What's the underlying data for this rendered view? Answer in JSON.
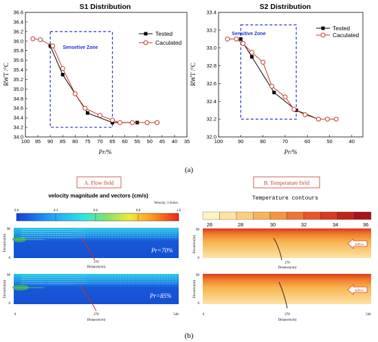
{
  "chart_data": [
    {
      "type": "line",
      "title": "S1 Distribution",
      "xlabel": "Pr/%",
      "ylabel": "RWT /°C",
      "xlim": [
        100,
        35
      ],
      "ylim": [
        34.0,
        36.6
      ],
      "xticks": [
        "100",
        "95",
        "90",
        "85",
        "80",
        "75",
        "70",
        "65",
        "60",
        "55",
        "50",
        "45",
        "40",
        "35"
      ],
      "yticks": [
        "34.0",
        "34.2",
        "34.4",
        "34.6",
        "34.8",
        "35.0",
        "35.2",
        "35.4",
        "35.6",
        "35.8",
        "36.0",
        "36.2",
        "36.4",
        "36.6"
      ],
      "annotation": "Sensetive Zone",
      "zone": {
        "x": [
          90,
          65
        ],
        "y": [
          34.2,
          36.2
        ]
      },
      "legend": "top-right",
      "series": [
        {
          "name": "Tested",
          "x": [
            90,
            85,
            80,
            75,
            65,
            55
          ],
          "y": [
            35.9,
            35.3,
            34.9,
            34.5,
            34.3,
            34.3
          ]
        },
        {
          "name": "Caculated",
          "x": [
            97,
            94,
            89,
            85,
            80,
            76,
            70,
            65,
            62,
            57,
            51,
            47
          ],
          "y": [
            36.05,
            36.03,
            35.9,
            35.43,
            34.9,
            34.6,
            34.45,
            34.35,
            34.3,
            34.3,
            34.3,
            34.3
          ]
        }
      ]
    },
    {
      "type": "line",
      "title": "S2 Distribution",
      "xlabel": "Pr/%",
      "ylabel": "RWT /°C",
      "xlim": [
        100,
        35
      ],
      "ylim": [
        32.0,
        33.4
      ],
      "xticks": [
        "100",
        "90",
        "80",
        "70",
        "60",
        "50",
        "40"
      ],
      "yticks": [
        "32.0",
        "32.2",
        "32.4",
        "32.6",
        "32.8",
        "33.0",
        "33.2",
        "33.4"
      ],
      "annotation": "Sensitive Zone",
      "zone": {
        "x": [
          90,
          65
        ],
        "y": [
          32.2,
          33.26
        ]
      },
      "legend": "top-right",
      "series": [
        {
          "name": "Tested",
          "x": [
            90,
            85,
            75,
            65,
            55
          ],
          "y": [
            33.1,
            32.9,
            32.5,
            32.3,
            32.2
          ]
        },
        {
          "name": "Caculated",
          "x": [
            96,
            92,
            89,
            85,
            80,
            76,
            70,
            66,
            61,
            55,
            51,
            47
          ],
          "y": [
            33.1,
            33.1,
            33.05,
            32.95,
            32.84,
            32.57,
            32.45,
            32.31,
            32.25,
            32.2,
            32.2,
            32.2
          ]
        }
      ]
    },
    {
      "type": "heatmap",
      "title": "velocity magnitude and vectors (cm/s)",
      "xlabel": "Distance(cm)",
      "ylabel": "Elevation(m)",
      "colorbar_ticks": [
        "0.0",
        "0.3",
        "0.6",
        "0.8",
        "1.0"
      ],
      "reference": "Velocity: 1.6cm/s",
      "x_ticks": [
        "0",
        "270",
        "540"
      ],
      "y_ticks": [
        "90",
        "0"
      ],
      "panels": [
        "Pr=70%",
        "Pr=85%"
      ]
    },
    {
      "type": "heatmap",
      "title": "Temperature contours",
      "xlabel": "Distance(cm)",
      "ylabel": "Elevation(m)",
      "colorbar_ticks": [
        "26",
        "28",
        "30",
        "32",
        "34",
        "36"
      ],
      "x_ticks": [
        "0",
        "270",
        "540"
      ],
      "y_ticks": [
        "90",
        "0"
      ],
      "inflow_label": "Inflow"
    }
  ],
  "labels": {
    "part_a": "(a)",
    "part_b": "(b)",
    "flow_title": "A. Flow field",
    "temp_title": "B. Temperature field"
  },
  "colors": {
    "tested": "#000000",
    "calculated": "#c0392b",
    "zone": "#1f2fd6",
    "annotation": "#1f2fd6",
    "panel_title": "#c0392b"
  }
}
